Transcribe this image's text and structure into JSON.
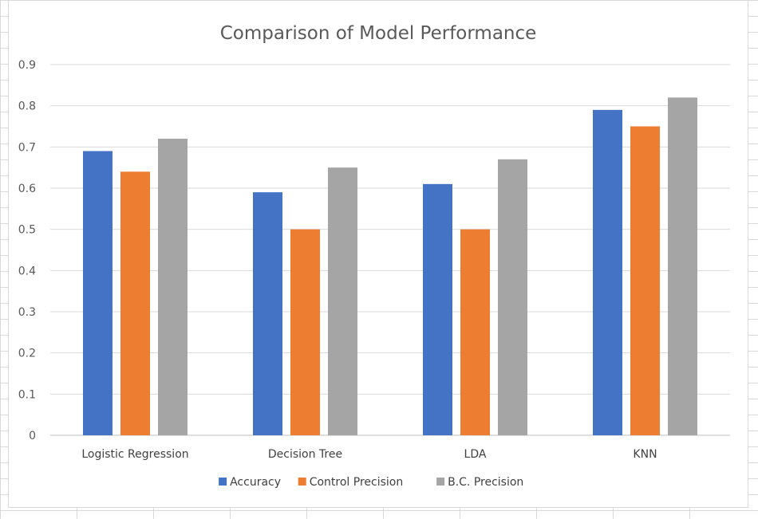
{
  "chart_data": {
    "type": "bar",
    "title": "Comparison of Model Performance",
    "xlabel": "",
    "ylabel": "",
    "categories": [
      "Logistic Regression",
      "Decision Tree",
      "LDA",
      "KNN"
    ],
    "series": [
      {
        "name": "Accuracy",
        "color": "#4472C4",
        "values": [
          0.69,
          0.59,
          0.61,
          0.79
        ]
      },
      {
        "name": "Control Precision",
        "color": "#ED7D31",
        "values": [
          0.64,
          0.5,
          0.5,
          0.75
        ]
      },
      {
        "name": "B.C. Precision",
        "color": "#A5A5A5",
        "values": [
          0.72,
          0.65,
          0.67,
          0.82
        ]
      }
    ],
    "ylim": [
      0,
      0.9
    ],
    "yticks": [
      "0",
      "0.1",
      "0.2",
      "0.3",
      "0.4",
      "0.5",
      "0.6",
      "0.7",
      "0.8",
      "0.9"
    ],
    "grid": true,
    "legend_position": "bottom"
  }
}
